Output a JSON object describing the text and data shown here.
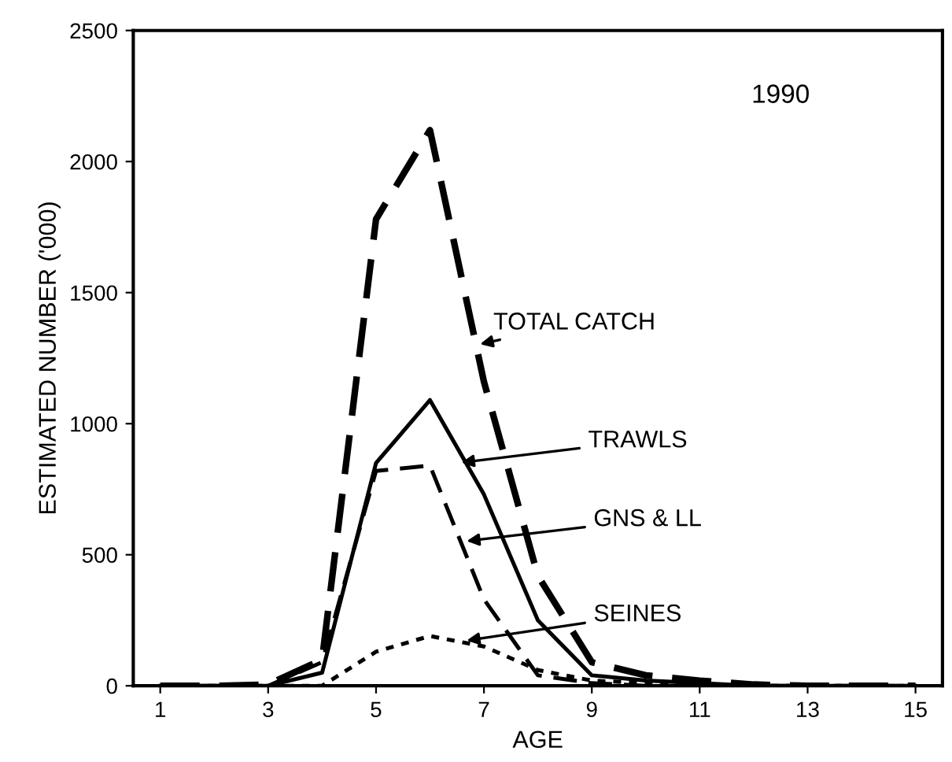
{
  "chart_data": {
    "type": "line",
    "xlabel": "AGE",
    "ylabel": "ESTIMATED NUMBER ('000)",
    "x": [
      1,
      2,
      3,
      4,
      5,
      6,
      7,
      8,
      9,
      10,
      11,
      12,
      13,
      14,
      15
    ],
    "series": [
      {
        "color": "#000000",
        "line_style": "dashed",
        "values": [
          0,
          0,
          5,
          100,
          1780,
          2120,
          1160,
          420,
          90,
          40,
          20,
          5,
          0,
          0,
          0
        ]
      },
      {
        "color": "#000000",
        "line_style": "solid",
        "values": [
          0,
          0,
          0,
          50,
          850,
          1090,
          730,
          250,
          40,
          20,
          10,
          0,
          0,
          0,
          0
        ]
      },
      {
        "color": "#000000",
        "line_style": "dashed",
        "values": [
          0,
          0,
          0,
          90,
          820,
          840,
          330,
          40,
          10,
          0,
          0,
          0,
          0,
          0,
          0
        ]
      },
      {
        "color": "#000000",
        "line_style": "dotted",
        "values": [
          0,
          0,
          0,
          0,
          130,
          190,
          150,
          60,
          20,
          10,
          0,
          0,
          0,
          0,
          0
        ]
      }
    ],
    "xlim": [
      0.5,
      15.5
    ],
    "xticks": [
      1,
      3,
      5,
      7,
      9,
      11,
      13,
      15
    ],
    "ylim": [
      0,
      2500
    ],
    "yticks": [
      0,
      500,
      1000,
      1500,
      2000,
      2500
    ],
    "grid": false,
    "legend": false,
    "marker": "none",
    "annotations": [
      "1990",
      {
        "text": "TOTAL CATCH",
        "x": 6.85,
        "y": 1300
      },
      {
        "text": "TRAWLS",
        "x": 6.5,
        "y": 850
      },
      {
        "text": "GNS & LL",
        "x": 6.6,
        "y": 550
      },
      {
        "text": "SEINES",
        "x": 6.6,
        "y": 170
      }
    ]
  }
}
